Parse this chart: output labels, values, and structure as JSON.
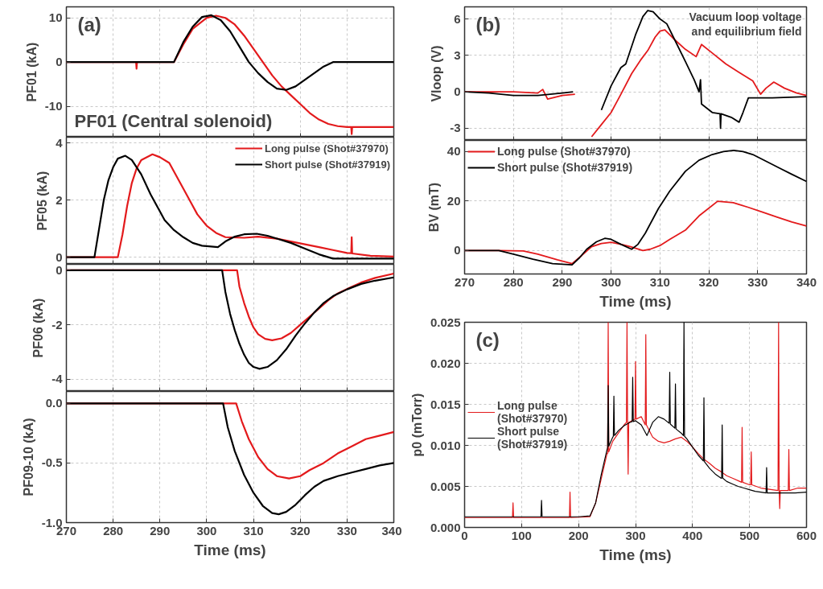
{
  "chart_data": [
    {
      "type": "line",
      "ylabel": "PF01 (kA)",
      "xlim": [
        270,
        340
      ],
      "ylim": [
        -17,
        12.5
      ],
      "xticks": [
        270,
        280,
        290,
        300,
        310,
        320,
        330,
        340
      ],
      "yticks": [
        -10,
        0,
        10
      ],
      "grid": true,
      "tick_labels": "y",
      "annotations": [
        "(a)",
        "PF01 (Central solenoid)"
      ],
      "series": [
        {
          "color": "#e31a1c",
          "x": [
            270,
            284.9,
            285,
            285.1,
            293,
            295,
            297,
            300,
            302,
            304,
            306,
            308,
            310,
            312,
            314,
            316,
            318,
            320,
            322,
            324,
            326,
            328,
            330,
            330.9,
            331,
            331.1,
            340
          ],
          "values": [
            0,
            0,
            -1.5,
            0,
            0,
            4,
            7.5,
            10,
            10.5,
            10,
            8.5,
            6,
            3,
            0,
            -3,
            -5.5,
            -7.5,
            -9.5,
            -11.5,
            -13,
            -14,
            -14.5,
            -14.7,
            -14.7,
            -16.3,
            -14.7,
            -14.7
          ]
        },
        {
          "color": "#000000",
          "x": [
            270,
            293,
            295,
            297,
            299,
            301,
            303,
            305,
            307,
            309,
            311,
            313,
            315,
            317,
            319,
            321,
            323,
            325,
            327,
            340
          ],
          "values": [
            0,
            0,
            4.5,
            8,
            10.2,
            10.6,
            9.5,
            7,
            3.5,
            0,
            -2.5,
            -4.5,
            -6,
            -6.3,
            -5.5,
            -4,
            -2.5,
            -1,
            0,
            0
          ]
        }
      ]
    },
    {
      "type": "line",
      "ylabel": "PF05 (kA)",
      "xlim": [
        270,
        340
      ],
      "ylim": [
        -0.25,
        4.2
      ],
      "xticks": [
        270,
        280,
        290,
        300,
        310,
        320,
        330,
        340
      ],
      "yticks": [
        0,
        2,
        4
      ],
      "grid": true,
      "tick_labels": "y",
      "legend": "top right",
      "series": [
        {
          "name": "Long pulse (Shot#37970)",
          "color": "#e31a1c",
          "x": [
            270,
            281,
            282,
            283,
            284,
            285,
            286,
            288.4,
            290,
            292,
            294,
            296,
            298,
            300,
            302,
            304,
            308,
            311,
            315,
            318,
            321,
            324,
            327,
            330,
            330.9,
            331,
            331.1,
            335,
            340
          ],
          "values": [
            0,
            0,
            0.8,
            1.8,
            2.6,
            3.1,
            3.4,
            3.6,
            3.5,
            3.3,
            2.7,
            2.1,
            1.5,
            1.1,
            0.85,
            0.7,
            0.68,
            0.72,
            0.65,
            0.55,
            0.45,
            0.35,
            0.25,
            0.15,
            0.14,
            0.7,
            0.13,
            0.05,
            0.02
          ]
        },
        {
          "name": "Short pulse (Shot#37919)",
          "color": "#000000",
          "x": [
            270,
            276,
            277,
            278,
            279,
            280,
            281,
            282.6,
            284,
            286,
            288,
            290,
            291,
            293,
            295,
            297,
            299,
            302.4,
            304,
            306,
            308,
            310.7,
            313,
            315,
            318,
            321,
            324,
            327,
            340
          ],
          "values": [
            0,
            0,
            1,
            2,
            2.7,
            3.15,
            3.45,
            3.55,
            3.4,
            2.9,
            2.2,
            1.6,
            1.3,
            0.95,
            0.7,
            0.5,
            0.4,
            0.35,
            0.55,
            0.72,
            0.8,
            0.82,
            0.75,
            0.65,
            0.5,
            0.3,
            0.1,
            -0.05,
            -0.05
          ]
        }
      ]
    },
    {
      "type": "line",
      "ylabel": "PF06 (kA)",
      "xlim": [
        270,
        340
      ],
      "ylim": [
        -4.45,
        0.22
      ],
      "xticks": [
        270,
        280,
        290,
        300,
        310,
        320,
        330,
        340
      ],
      "yticks": [
        -4,
        -2,
        0
      ],
      "grid": true,
      "tick_labels": "y",
      "series": [
        {
          "color": "#e31a1c",
          "x": [
            270,
            306.5,
            307,
            308,
            309,
            310,
            311,
            312.5,
            314,
            316,
            318,
            320,
            322,
            324,
            326,
            328,
            330.8,
            333,
            336,
            340
          ],
          "values": [
            0,
            0,
            -0.6,
            -1.2,
            -1.7,
            -2.1,
            -2.35,
            -2.52,
            -2.57,
            -2.5,
            -2.3,
            -2,
            -1.7,
            -1.4,
            -1.1,
            -0.85,
            -0.62,
            -0.45,
            -0.28,
            -0.12
          ]
        },
        {
          "color": "#000000",
          "x": [
            270,
            303.3,
            304,
            305,
            306,
            307,
            308,
            309,
            310,
            311.3,
            313,
            315,
            317,
            319,
            321,
            323,
            325,
            327,
            330,
            333,
            336,
            340
          ],
          "values": [
            0,
            0,
            -0.8,
            -1.6,
            -2.2,
            -2.7,
            -3.1,
            -3.4,
            -3.55,
            -3.62,
            -3.55,
            -3.3,
            -2.9,
            -2.4,
            -1.95,
            -1.55,
            -1.2,
            -0.95,
            -0.7,
            -0.5,
            -0.38,
            -0.26
          ]
        }
      ]
    },
    {
      "type": "line",
      "xlabel": "Time (ms)",
      "ylabel": "PF09-10 (kA)",
      "xlim": [
        270,
        340
      ],
      "ylim": [
        -1,
        0.1
      ],
      "xticks": [
        270,
        280,
        290,
        300,
        310,
        320,
        330,
        340
      ],
      "yticks": [
        {
          "value": -1,
          "label": "-1.0"
        },
        {
          "value": -0.5,
          "label": "-0.5"
        },
        {
          "value": 0,
          "label": "0.0"
        }
      ],
      "grid": true,
      "series": [
        {
          "color": "#e31a1c",
          "x": [
            270,
            306.3,
            307.5,
            309,
            311,
            313,
            315,
            317.6,
            320,
            322,
            325,
            328,
            331,
            334,
            337,
            340
          ],
          "values": [
            0,
            0,
            -0.15,
            -0.3,
            -0.45,
            -0.55,
            -0.61,
            -0.63,
            -0.61,
            -0.56,
            -0.5,
            -0.42,
            -0.36,
            -0.3,
            -0.27,
            -0.24
          ]
        },
        {
          "color": "#000000",
          "x": [
            270,
            303.5,
            304.5,
            306,
            308,
            310,
            312,
            314,
            315.4,
            317,
            319,
            321,
            323,
            325,
            328,
            331,
            334,
            337,
            340
          ],
          "values": [
            0,
            0,
            -0.2,
            -0.4,
            -0.6,
            -0.75,
            -0.86,
            -0.92,
            -0.93,
            -0.91,
            -0.85,
            -0.77,
            -0.7,
            -0.65,
            -0.61,
            -0.58,
            -0.55,
            -0.52,
            -0.5
          ]
        }
      ]
    },
    {
      "type": "line",
      "ylabel": "Vloop (V)",
      "xlim": [
        270,
        340
      ],
      "ylim": [
        -4,
        7
      ],
      "xticks": [
        270,
        280,
        290,
        300,
        310,
        320,
        330,
        340
      ],
      "yticks": [
        -3,
        0,
        3,
        6
      ],
      "grid": true,
      "tick_labels": "y",
      "annotations": [
        "(b)",
        "Vacuum loop voltage",
        "and equilibrium field"
      ],
      "series": [
        {
          "color": "#e31a1c",
          "x": [
            270,
            280,
            285,
            286,
            287,
            290,
            292.6,
            292.8,
            294.5,
            296,
            298,
            300,
            302,
            304.2,
            306,
            307.5,
            309,
            310,
            311,
            313,
            315.2,
            317.4,
            318.5,
            320.7,
            323.5,
            326.2,
            329,
            330.6,
            331.7,
            333.3,
            335.5,
            338,
            340
          ],
          "values": [
            0,
            0,
            -0.1,
            0.2,
            -0.6,
            -0.3,
            -0.2,
            null,
            null,
            -3.7,
            -2.7,
            -1.7,
            -0.2,
            1.5,
            2.6,
            3.4,
            4.5,
            5,
            5.1,
            4.3,
            3.5,
            2.9,
            3.9,
            3.2,
            2.3,
            1.6,
            0.9,
            -0.2,
            0.3,
            0.8,
            0.3,
            -0.1,
            -0.3
          ]
        },
        {
          "color": "#000000",
          "x": [
            270,
            275,
            280,
            285,
            290,
            292.2,
            292.6,
            295.4,
            298,
            300,
            302,
            303,
            305,
            306.5,
            307.5,
            308.6,
            310,
            311.4,
            313,
            315.2,
            317,
            318,
            318.3,
            318.5,
            320.7,
            322.3,
            322.4,
            322.5,
            324.6,
            326.2,
            327,
            328.1,
            333,
            340
          ],
          "values": [
            0,
            -0.1,
            -0.3,
            -0.3,
            -0.1,
            0,
            null,
            null,
            -1.5,
            0.5,
            2,
            2.3,
            4.7,
            6.2,
            6.7,
            6.6,
            6,
            5.6,
            4.3,
            2.5,
            1,
            0,
            1,
            -1,
            -1.7,
            -1.8,
            -3,
            -1.8,
            -2.1,
            -2.5,
            -1.7,
            -0.5,
            -0.5,
            -0.4
          ]
        }
      ]
    },
    {
      "type": "line",
      "xlabel": "Time (ms)",
      "ylabel": "BV (mT)",
      "xlim": [
        270,
        340
      ],
      "ylim": [
        -9.5,
        44.5
      ],
      "xticks": [
        270,
        280,
        290,
        300,
        310,
        320,
        330,
        340
      ],
      "yticks": [
        0,
        20,
        40
      ],
      "grid": true,
      "legend": "top left",
      "series": [
        {
          "name": "Long pulse (Shot#37970)",
          "color": "#e31a1c",
          "x": [
            270,
            277,
            282,
            285,
            289,
            292,
            294,
            296,
            298,
            300,
            302,
            304,
            306.5,
            308,
            310,
            312,
            315.2,
            318,
            321.8,
            325,
            328,
            331,
            334,
            337,
            340
          ],
          "values": [
            0,
            0,
            -0.2,
            -1.5,
            -3.8,
            -5.3,
            -2,
            1.5,
            2.8,
            3.3,
            2.5,
            1.5,
            0,
            0.5,
            2,
            4.5,
            8.2,
            14,
            19.9,
            19.3,
            17.5,
            15.5,
            13.5,
            11.5,
            9.9
          ]
        },
        {
          "name": "Short pulse (Shot#37919)",
          "color": "#000000",
          "x": [
            270,
            277,
            280,
            284,
            288,
            292,
            293.5,
            295,
            297,
            298.7,
            300,
            302,
            304.2,
            305.5,
            307,
            309.7,
            312,
            315.2,
            318,
            320.7,
            323,
            325.1,
            327,
            329,
            332,
            334.5,
            337,
            340
          ],
          "values": [
            0,
            0,
            -1.5,
            -3.5,
            -5.3,
            -5.8,
            -3,
            0.5,
            3.5,
            4.9,
            4.5,
            2.5,
            0.5,
            2.5,
            7,
            17,
            24,
            32,
            36.5,
            38.8,
            40,
            40.5,
            40,
            38.8,
            35.8,
            33.3,
            30.8,
            27.9
          ]
        }
      ]
    },
    {
      "type": "line",
      "xlabel": "Time (ms)",
      "ylabel": "p0 (mTorr)",
      "xlim": [
        0,
        600
      ],
      "ylim": [
        0,
        0.025
      ],
      "xticks": [
        0,
        100,
        200,
        300,
        400,
        500,
        600
      ],
      "yticks": [
        {
          "value": 0,
          "label": "0.000"
        },
        {
          "value": 0.005,
          "label": "0.005"
        },
        {
          "value": 0.01,
          "label": "0.010"
        },
        {
          "value": 0.015,
          "label": "0.015"
        },
        {
          "value": 0.02,
          "label": "0.020"
        },
        {
          "value": 0.025,
          "label": "0.025"
        }
      ],
      "grid": true,
      "legend": "left",
      "annotations": [
        "(c)"
      ],
      "series": [
        {
          "name": "Long pulse (Shot#37970)",
          "color": "#e31a1c",
          "x": [
            0,
            50,
            84,
            85,
            86,
            150,
            184,
            185,
            186,
            220,
            230,
            240,
            250,
            251,
            252,
            253,
            260,
            270,
            280,
            284,
            285,
            286,
            287,
            288,
            299,
            300,
            301,
            310,
            317,
            318,
            319,
            330,
            340,
            350,
            360,
            370,
            380,
            390,
            400,
            410,
            420,
            430,
            440,
            450,
            460,
            470,
            480,
            486,
            487,
            488,
            500,
            502,
            503,
            504,
            520,
            540,
            550,
            551,
            552,
            553,
            554,
            568,
            569,
            570,
            585,
            600
          ],
          "values": [
            0.0012,
            0.0012,
            0.0012,
            0.003,
            0.0012,
            0.0012,
            0.0012,
            0.0043,
            0.0012,
            0.0013,
            0.003,
            0.006,
            0.009,
            0.009,
            0.025,
            0.0092,
            0.0105,
            0.0115,
            0.0125,
            0.0128,
            0.025,
            0.0128,
            0.0065,
            0.0128,
            0.0132,
            0.0202,
            0.0132,
            0.0135,
            0.0125,
            0.0235,
            0.0125,
            0.011,
            0.0105,
            0.0103,
            0.0105,
            0.0108,
            0.011,
            0.0105,
            0.0098,
            0.009,
            0.0083,
            0.0078,
            0.0072,
            0.0068,
            0.0063,
            0.006,
            0.0057,
            0.0055,
            0.0122,
            0.0055,
            0.0052,
            0.0052,
            0.0092,
            0.0052,
            0.0048,
            0.0046,
            0.0045,
            0.025,
            0.0045,
            0.0023,
            0.0045,
            0.0045,
            0.0095,
            0.0045,
            0.0048,
            0.0048
          ]
        },
        {
          "name": "Short pulse (Shot#37919)",
          "color": "#000000",
          "x": [
            0,
            50,
            100,
            134,
            135,
            136,
            150,
            200,
            220,
            230,
            240,
            250,
            251,
            252,
            253,
            260,
            261,
            262,
            263,
            270,
            280,
            290,
            294,
            295,
            296,
            300,
            310,
            320,
            330,
            340,
            350,
            359,
            360,
            361,
            369,
            370,
            371,
            380,
            384,
            385,
            386,
            390,
            400,
            410,
            419,
            420,
            421,
            430,
            440,
            450,
            451,
            452,
            453,
            460,
            470,
            480,
            490,
            500,
            510,
            520,
            529,
            530,
            531,
            540,
            560,
            580,
            600
          ],
          "values": [
            0.0013,
            0.0013,
            0.0013,
            0.0013,
            0.0033,
            0.0013,
            0.0013,
            0.0013,
            0.0014,
            0.003,
            0.0065,
            0.0095,
            0.0097,
            0.0173,
            0.0099,
            0.011,
            0.0111,
            0.016,
            0.0112,
            0.0118,
            0.0124,
            0.0128,
            0.0129,
            0.0183,
            0.0129,
            0.013,
            0.0125,
            0.0112,
            0.0128,
            0.0135,
            0.0132,
            0.0127,
            0.0189,
            0.0126,
            0.0121,
            0.0175,
            0.012,
            0.0115,
            0.0112,
            0.025,
            0.0111,
            0.0108,
            0.0098,
            0.0088,
            0.0081,
            0.0158,
            0.008,
            0.0072,
            0.0065,
            0.006,
            0.006,
            0.0125,
            0.006,
            0.0056,
            0.0053,
            0.005,
            0.0048,
            0.0046,
            0.0044,
            0.0043,
            0.0042,
            0.0073,
            0.0042,
            0.0042,
            0.0042,
            0.0042,
            0.0043
          ]
        }
      ]
    }
  ]
}
